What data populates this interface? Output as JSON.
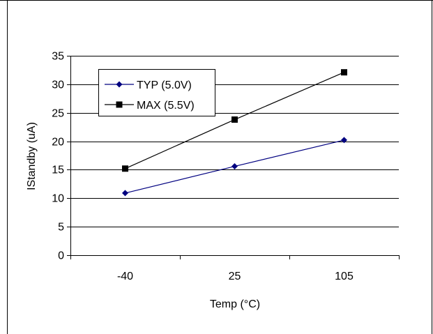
{
  "colors": {
    "background": "#ffffff",
    "axis": "#000000",
    "grid": "#000000",
    "typ_series": "#000080",
    "max_series": "#000000"
  },
  "chart_data": {
    "type": "line",
    "title": "",
    "xlabel": "Temp (°C)",
    "ylabel": "IStandby (uA)",
    "categories": [
      "-40",
      "25",
      "105"
    ],
    "ylim": [
      0,
      35
    ],
    "yticks": [
      0,
      5,
      10,
      15,
      20,
      25,
      30,
      35
    ],
    "grid": true,
    "legend_position": "top-left",
    "series": [
      {
        "name": "TYP (5.0V)",
        "marker": "diamond",
        "color": "#000080",
        "values": [
          10.9,
          15.6,
          20.2
        ]
      },
      {
        "name": "MAX (5.5V)",
        "marker": "square",
        "color": "#000000",
        "values": [
          15.2,
          23.8,
          32.1
        ]
      }
    ]
  }
}
